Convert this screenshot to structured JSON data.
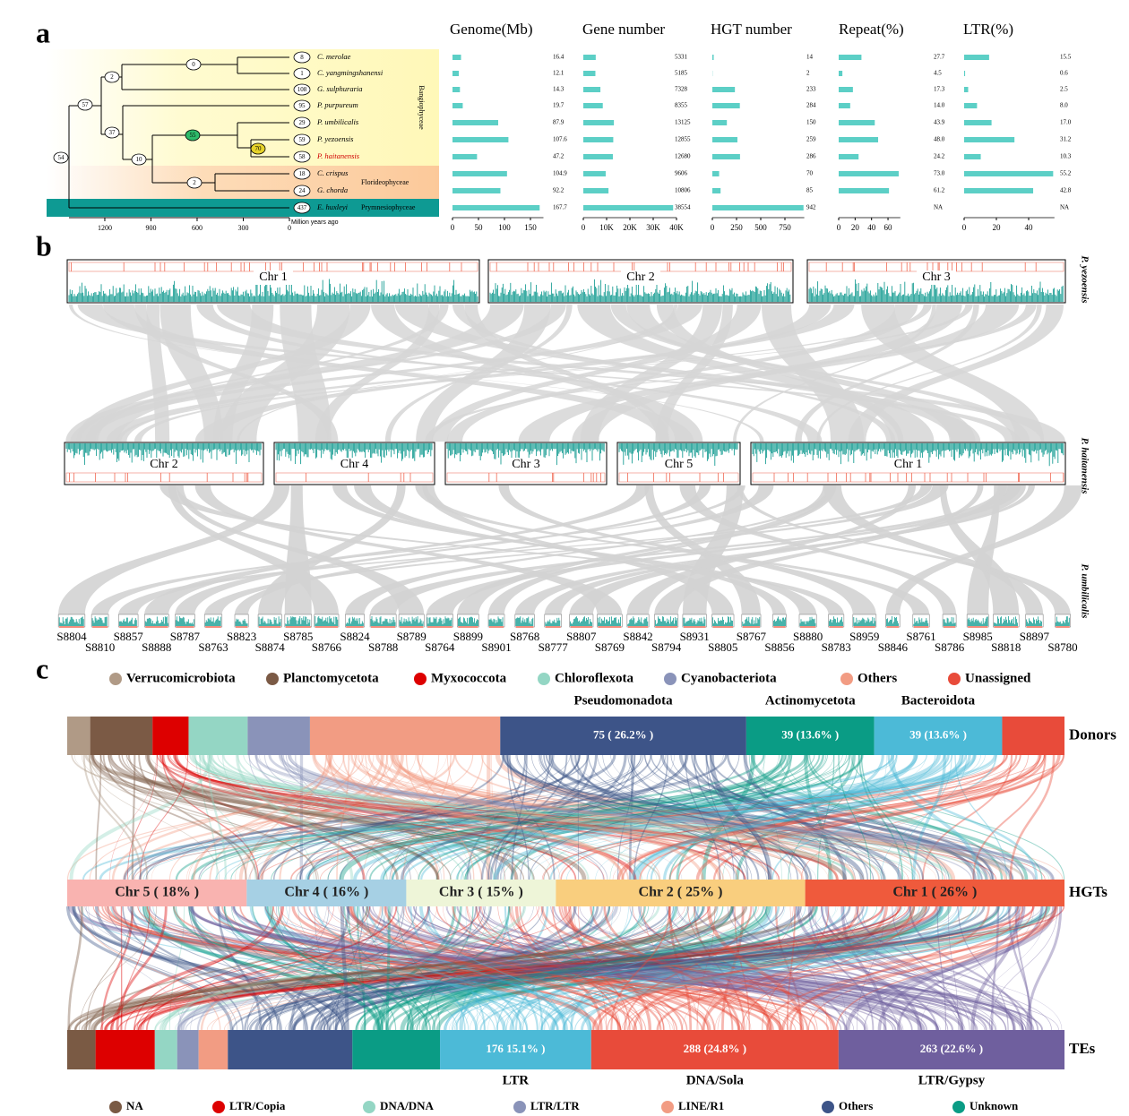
{
  "chart_data": [
    {
      "type": "bar",
      "title": "Genome(Mb)",
      "values": [
        16.4,
        12.1,
        14.3,
        19.7,
        87.9,
        107.6,
        47.2,
        104.9,
        92.2,
        167.7
      ],
      "color": "#5ccfc6",
      "xlim": [
        0,
        175
      ],
      "xticks": [
        0,
        50,
        100,
        150
      ]
    },
    {
      "type": "bar",
      "title": "Gene number",
      "values": [
        5331,
        5185,
        7328,
        8355,
        13125,
        12855,
        12680,
        9606,
        10806,
        38554
      ],
      "color": "#5ccfc6",
      "xlim": [
        0,
        40000
      ],
      "xticks": [
        0,
        {
          "value": 10000,
          "label": "10K"
        },
        {
          "value": 20000,
          "label": "20K"
        },
        {
          "value": 30000,
          "label": "30K"
        },
        {
          "value": 40000,
          "label": "40K"
        }
      ]
    },
    {
      "type": "bar",
      "title": "HGT number",
      "values": [
        14,
        2,
        233,
        284,
        150,
        259,
        286,
        70,
        85,
        942
      ],
      "color": "#5ccfc6",
      "xlim": [
        0,
        950
      ],
      "xticks": [
        0,
        250,
        500,
        750
      ]
    },
    {
      "type": "bar",
      "title": "Repeat(%)",
      "values": [
        27.7,
        4.5,
        17.3,
        14,
        43.9,
        48,
        24.2,
        73,
        61.2,
        null
      ],
      "value_labels": [
        "27.7",
        "4.5",
        "17.3",
        "14.0",
        "43.9",
        "48.0",
        "24.2",
        "73.0",
        "61.2",
        "NA"
      ],
      "color": "#5ccfc6",
      "xlim": [
        0,
        75
      ],
      "xticks": [
        0,
        20,
        40,
        60
      ]
    },
    {
      "type": "bar",
      "title": "LTR(%)",
      "values": [
        15.5,
        0.6,
        2.5,
        8,
        17,
        31.2,
        10.3,
        55.2,
        42.8,
        null
      ],
      "value_labels": [
        "15.5",
        "0.6",
        "2.5",
        "8.0",
        "17.0",
        "31.2",
        "10.3",
        "55.2",
        "42.8",
        "NA"
      ],
      "color": "#5ccfc6",
      "xlim": [
        0,
        56
      ],
      "xticks": [
        0,
        20,
        40
      ]
    }
  ],
  "panel_a": {
    "label": "a",
    "tree": {
      "leaves": [
        {
          "name": "C. merolae",
          "count": 8
        },
        {
          "name": "C. yangmingshanensi",
          "count": 1
        },
        {
          "name": "G. sulphuraria",
          "count": 108
        },
        {
          "name": "P. purpureum",
          "count": 95
        },
        {
          "name": "P. umbilicalis",
          "count": 29
        },
        {
          "name": "P. yezoensis",
          "count": 59
        },
        {
          "name": "P. haitanensis",
          "count": 58,
          "color": "#d00000"
        },
        {
          "name": "C. crispus",
          "count": 18
        },
        {
          "name": "G. chorda",
          "count": 24
        },
        {
          "name": "E. huxleyi",
          "count": 437
        }
      ],
      "node_labels": [
        0,
        2,
        57,
        37,
        55,
        70,
        10,
        2,
        54
      ],
      "clades": [
        "Bangiophyceae",
        "Florideophyceae",
        "Prymnesiophyceae"
      ],
      "axis_label": "Million years ago",
      "xticks": [
        1200,
        900,
        600,
        300,
        0
      ]
    }
  },
  "panel_b": {
    "label": "b",
    "genomes": [
      {
        "name": "P. yezoensis",
        "chromosomes": [
          "Chr 1",
          "Chr 2",
          "Chr 3"
        ]
      },
      {
        "name": "P. haitanensis",
        "chromosomes": [
          "Chr 2",
          "Chr 4",
          "Chr 3",
          "Chr 5",
          "Chr 1"
        ]
      },
      {
        "name": "P. umbilicalis",
        "scaffolds": [
          "S8804",
          "S8810",
          "S8857",
          "S8888",
          "S8787",
          "S8763",
          "S8823",
          "S8874",
          "S8785",
          "S8766",
          "S8824",
          "S8788",
          "S8789",
          "S8764",
          "S8899",
          "S8901",
          "S8768",
          "S8777",
          "S8807",
          "S8769",
          "S8842",
          "S8794",
          "S8931",
          "S8805",
          "S8767",
          "S8856",
          "S8880",
          "S8783",
          "S8959",
          "S8846",
          "S8761",
          "S8786",
          "S8985",
          "S8818",
          "S8897",
          "S8780"
        ]
      }
    ]
  },
  "panel_c": {
    "label": "c",
    "rows": [
      {
        "name": "Donors",
        "segments": [
          {
            "name": "Verrucomicrobiota",
            "color": "#b09a86",
            "value": 7
          },
          {
            "name": "Planctomycetota",
            "color": "#7b5a45",
            "value": 19
          },
          {
            "name": "Myxococcota",
            "color": "#dd0000",
            "value": 11
          },
          {
            "name": "Chloroflexota",
            "color": "#94d6c4",
            "value": 18
          },
          {
            "name": "Cyanobacteriota",
            "color": "#8a93b9",
            "value": 19
          },
          {
            "name": "Others",
            "color": "#f29c83",
            "value": 58
          },
          {
            "name": "Pseudomonadota",
            "color": "#3d5488",
            "value": 75,
            "value_label": "75 ( 26.2% )"
          },
          {
            "name": "Actinomycetota",
            "color": "#0a9c85",
            "value": 39,
            "value_label": "39 (13.6% )"
          },
          {
            "name": "Bacteroidota",
            "color": "#4cbad7",
            "value": 39,
            "value_label": "39 (13.6% )"
          },
          {
            "name": "Unassigned",
            "color": "#e84b3a",
            "value": 19
          }
        ]
      },
      {
        "name": "HGTs",
        "segments": [
          {
            "value": 18,
            "value_label": "Chr 5 ( 18% )",
            "color": "#f9b3b0"
          },
          {
            "value": 16,
            "value_label": "Chr 4 ( 16% )",
            "color": "#a6d0e4"
          },
          {
            "value": 15,
            "value_label": "Chr 3 ( 15% )",
            "color": "#eef5d8"
          },
          {
            "value": 25,
            "value_label": "Chr 2 ( 25% )",
            "color": "#f9ce7e"
          },
          {
            "value": 26,
            "value_label": "Chr 1 ( 26% )",
            "color": "#ef5a3c"
          }
        ]
      },
      {
        "name": "TEs",
        "segments": [
          {
            "name": "NA",
            "color": "#7a5a44",
            "value": 33
          },
          {
            "name": "LTR/Copia",
            "color": "#dd0000",
            "value": 69
          },
          {
            "name": "DNA/DNA",
            "color": "#94d6c4",
            "value": 26
          },
          {
            "name": "LTR/LTR",
            "color": "#8a93b9",
            "value": 25
          },
          {
            "name": "LINE/R1",
            "color": "#f29c83",
            "value": 34
          },
          {
            "name": "Others",
            "color": "#3d5488",
            "value": 145
          },
          {
            "name": "Unknown",
            "color": "#0a9c85",
            "value": 102
          },
          {
            "name": "LTR",
            "color": "#4cbad7",
            "value": 176,
            "value_label": "176 15.1% )"
          },
          {
            "name": "DNA/Sola",
            "color": "#e84b3a",
            "value": 288,
            "value_label": "288 (24.8% )"
          },
          {
            "name": "LTR/Gypsy",
            "color": "#6f5f9e",
            "value": 263,
            "value_label": "263 (22.6% )"
          }
        ]
      }
    ]
  }
}
